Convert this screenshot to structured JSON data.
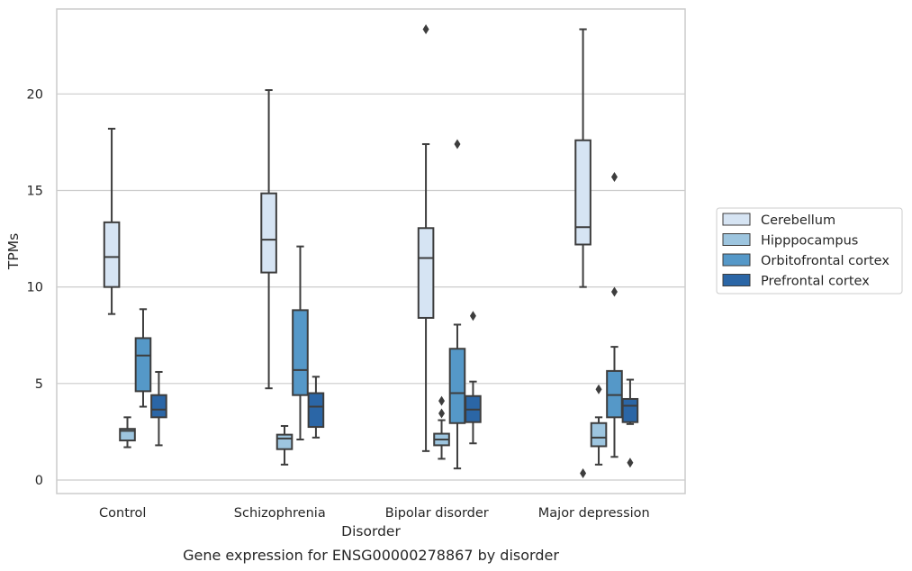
{
  "chart_data": {
    "type": "box",
    "title": "",
    "caption": "Gene expression for ENSG00000278867 by disorder",
    "xlabel": "Disorder",
    "ylabel": "TPMs",
    "ylim": [
      -0.7,
      24.4
    ],
    "yticks": [
      "0",
      "5",
      "10",
      "15",
      "20"
    ],
    "grid": "horizontal",
    "legend_position": "right",
    "categories": [
      "Control",
      "Schizophrenia",
      "Bipolar disorder",
      "Major depression"
    ],
    "series": [
      {
        "name": "Cerebellum",
        "color": "#d6e4f3",
        "boxes": [
          {
            "whislo": 8.6,
            "q1": 10.0,
            "med": 11.55,
            "q3": 13.35,
            "whishi": 18.2,
            "fliers": []
          },
          {
            "whislo": 4.75,
            "q1": 10.75,
            "med": 12.45,
            "q3": 14.85,
            "whishi": 20.2,
            "fliers": []
          },
          {
            "whislo": 1.5,
            "q1": 8.4,
            "med": 11.5,
            "q3": 13.05,
            "whishi": 17.4,
            "fliers": [
              23.35
            ]
          },
          {
            "whislo": 10.0,
            "q1": 12.2,
            "med": 13.1,
            "q3": 17.6,
            "whishi": 23.35,
            "fliers": [
              0.35
            ]
          }
        ]
      },
      {
        "name": "Hipppocampus",
        "color": "#9dc5df",
        "boxes": [
          {
            "whislo": 1.7,
            "q1": 2.05,
            "med": 2.55,
            "q3": 2.65,
            "whishi": 3.25,
            "fliers": []
          },
          {
            "whislo": 0.8,
            "q1": 1.6,
            "med": 2.15,
            "q3": 2.35,
            "whishi": 2.8,
            "fliers": []
          },
          {
            "whislo": 1.1,
            "q1": 1.8,
            "med": 2.1,
            "q3": 2.4,
            "whishi": 3.1,
            "fliers": [
              3.45,
              4.1
            ]
          },
          {
            "whislo": 0.8,
            "q1": 1.75,
            "med": 2.2,
            "q3": 2.95,
            "whishi": 3.25,
            "fliers": [
              4.7
            ]
          }
        ]
      },
      {
        "name": "Orbitofrontal cortex",
        "color": "#5598c8",
        "boxes": [
          {
            "whislo": 3.8,
            "q1": 4.6,
            "med": 6.45,
            "q3": 7.35,
            "whishi": 8.85,
            "fliers": []
          },
          {
            "whislo": 2.1,
            "q1": 4.4,
            "med": 5.7,
            "q3": 8.8,
            "whishi": 12.1,
            "fliers": []
          },
          {
            "whislo": 0.6,
            "q1": 2.95,
            "med": 4.5,
            "q3": 6.8,
            "whishi": 8.05,
            "fliers": [
              17.4
            ]
          },
          {
            "whislo": 1.2,
            "q1": 3.25,
            "med": 4.4,
            "q3": 5.65,
            "whishi": 6.9,
            "fliers": [
              9.75,
              15.7
            ]
          }
        ]
      },
      {
        "name": "Prefrontal cortex",
        "color": "#2b66a6",
        "boxes": [
          {
            "whislo": 1.8,
            "q1": 3.25,
            "med": 3.65,
            "q3": 4.4,
            "whishi": 5.6,
            "fliers": []
          },
          {
            "whislo": 2.2,
            "q1": 2.75,
            "med": 3.8,
            "q3": 4.5,
            "whishi": 5.35,
            "fliers": []
          },
          {
            "whislo": 1.9,
            "q1": 3.0,
            "med": 3.65,
            "q3": 4.35,
            "whishi": 5.1,
            "fliers": [
              8.5
            ]
          },
          {
            "whislo": 2.9,
            "q1": 3.0,
            "med": 3.85,
            "q3": 4.2,
            "whishi": 5.2,
            "fliers": [
              0.9
            ]
          }
        ]
      }
    ]
  }
}
